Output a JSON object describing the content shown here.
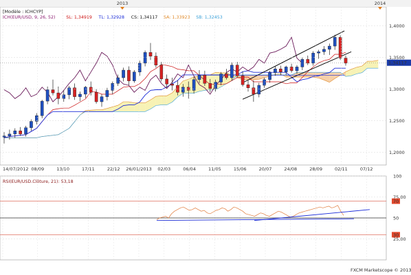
{
  "chart_data": [
    {
      "type": "candlestick",
      "model_label": "[Modèle : ICHCYP]",
      "year_markers": [
        "2013",
        "2014"
      ],
      "legend": [
        {
          "text": "ICH(EUR/USD, 9, 26, 52)",
          "color": "#8b1a6f"
        },
        {
          "text": "SL: 1,34919",
          "color": "#cc1111"
        },
        {
          "text": "TL: 1,32928",
          "color": "#1a2bd8"
        },
        {
          "text": "CS: 1,34117",
          "color": "#111111"
        },
        {
          "text": "SA: 1,33923",
          "color": "#e08a2a"
        },
        {
          "text": "SB: 1,32453",
          "color": "#3aa0d8"
        }
      ],
      "ylim": [
        1.18,
        1.43
      ],
      "yticks": [
        "1,4000",
        "1,3500",
        "1,3000",
        "1,2500",
        "1,2000"
      ],
      "last_price_label": "1,34117",
      "xticks": [
        "14/07/2012",
        "08/09",
        "13/10",
        "17/11",
        "22/12",
        "26/01/2013",
        "02/03",
        "06/04",
        "11/05",
        "15/06",
        "20/07",
        "24/08",
        "28/09",
        "02/11",
        "07/12"
      ],
      "candles": [
        [
          1.224,
          1.232,
          1.214,
          1.226
        ],
        [
          1.226,
          1.236,
          1.22,
          1.229
        ],
        [
          1.229,
          1.238,
          1.223,
          1.234
        ],
        [
          1.234,
          1.24,
          1.226,
          1.229
        ],
        [
          1.229,
          1.242,
          1.225,
          1.239
        ],
        [
          1.239,
          1.252,
          1.234,
          1.249
        ],
        [
          1.249,
          1.262,
          1.244,
          1.258
        ],
        [
          1.258,
          1.283,
          1.254,
          1.281
        ],
        [
          1.281,
          1.304,
          1.276,
          1.299
        ],
        [
          1.299,
          1.315,
          1.29,
          1.294
        ],
        [
          1.294,
          1.304,
          1.276,
          1.285
        ],
        [
          1.285,
          1.298,
          1.28,
          1.291
        ],
        [
          1.291,
          1.305,
          1.284,
          1.302
        ],
        [
          1.302,
          1.309,
          1.283,
          1.288
        ],
        [
          1.288,
          1.296,
          1.281,
          1.292
        ],
        [
          1.292,
          1.305,
          1.286,
          1.303
        ],
        [
          1.303,
          1.312,
          1.29,
          1.295
        ],
        [
          1.295,
          1.3,
          1.277,
          1.28
        ],
        [
          1.28,
          1.292,
          1.272,
          1.288
        ],
        [
          1.288,
          1.302,
          1.282,
          1.298
        ],
        [
          1.298,
          1.312,
          1.292,
          1.309
        ],
        [
          1.309,
          1.323,
          1.305,
          1.318
        ],
        [
          1.318,
          1.334,
          1.312,
          1.33
        ],
        [
          1.33,
          1.336,
          1.306,
          1.313
        ],
        [
          1.313,
          1.33,
          1.31,
          1.327
        ],
        [
          1.327,
          1.345,
          1.321,
          1.341
        ],
        [
          1.341,
          1.361,
          1.336,
          1.358
        ],
        [
          1.358,
          1.373,
          1.346,
          1.352
        ],
        [
          1.352,
          1.358,
          1.334,
          1.338
        ],
        [
          1.338,
          1.343,
          1.312,
          1.316
        ],
        [
          1.316,
          1.323,
          1.302,
          1.308
        ],
        [
          1.308,
          1.318,
          1.298,
          1.306
        ],
        [
          1.306,
          1.314,
          1.29,
          1.295
        ],
        [
          1.295,
          1.308,
          1.288,
          1.303
        ],
        [
          1.303,
          1.312,
          1.285,
          1.298
        ],
        [
          1.298,
          1.32,
          1.293,
          1.315
        ],
        [
          1.315,
          1.33,
          1.309,
          1.322
        ],
        [
          1.322,
          1.329,
          1.305,
          1.309
        ],
        [
          1.309,
          1.316,
          1.295,
          1.301
        ],
        [
          1.301,
          1.315,
          1.296,
          1.311
        ],
        [
          1.311,
          1.327,
          1.306,
          1.324
        ],
        [
          1.324,
          1.332,
          1.315,
          1.318
        ],
        [
          1.318,
          1.342,
          1.313,
          1.338
        ],
        [
          1.338,
          1.343,
          1.318,
          1.321
        ],
        [
          1.321,
          1.328,
          1.304,
          1.307
        ],
        [
          1.307,
          1.314,
          1.296,
          1.302
        ],
        [
          1.302,
          1.314,
          1.28,
          1.292
        ],
        [
          1.292,
          1.31,
          1.287,
          1.306
        ],
        [
          1.306,
          1.318,
          1.302,
          1.315
        ],
        [
          1.315,
          1.329,
          1.31,
          1.326
        ],
        [
          1.326,
          1.336,
          1.321,
          1.332
        ],
        [
          1.332,
          1.337,
          1.322,
          1.327
        ],
        [
          1.327,
          1.337,
          1.322,
          1.335
        ],
        [
          1.335,
          1.34,
          1.326,
          1.329
        ],
        [
          1.329,
          1.338,
          1.324,
          1.335
        ],
        [
          1.335,
          1.35,
          1.33,
          1.347
        ],
        [
          1.347,
          1.353,
          1.338,
          1.341
        ],
        [
          1.341,
          1.36,
          1.337,
          1.357
        ],
        [
          1.357,
          1.362,
          1.348,
          1.359
        ],
        [
          1.359,
          1.368,
          1.354,
          1.363
        ],
        [
          1.363,
          1.372,
          1.354,
          1.368
        ],
        [
          1.368,
          1.386,
          1.362,
          1.382
        ],
        [
          1.382,
          1.385,
          1.346,
          1.349
        ],
        [
          1.349,
          1.353,
          1.337,
          1.341
        ]
      ],
      "annotations": [
        "ascending channel",
        "horizontal support line"
      ]
    },
    {
      "type": "line",
      "title": "RSI(EUR/USD.Clôture, 21): 53,18",
      "ylim": [
        0,
        100
      ],
      "yticks": [
        "100",
        "75,00",
        "50",
        "25,00"
      ],
      "levels": [
        "70",
        "30"
      ],
      "series": [
        {
          "values": [
            48,
            50,
            51,
            52,
            50,
            55,
            58,
            60,
            62,
            63,
            61,
            59,
            60,
            62,
            60,
            58,
            59,
            56,
            55,
            57,
            59,
            60,
            62,
            61,
            58,
            60,
            63,
            62,
            60,
            58,
            55,
            54,
            53,
            52,
            54,
            56,
            55,
            53,
            52,
            54,
            56,
            58,
            57,
            55,
            53,
            51,
            52,
            54,
            56,
            57,
            58,
            59,
            60,
            61,
            62,
            63,
            62,
            63,
            64,
            62,
            63,
            65,
            58,
            53
          ]
        }
      ],
      "footer": "FXCM Marketscope © 2013"
    }
  ]
}
